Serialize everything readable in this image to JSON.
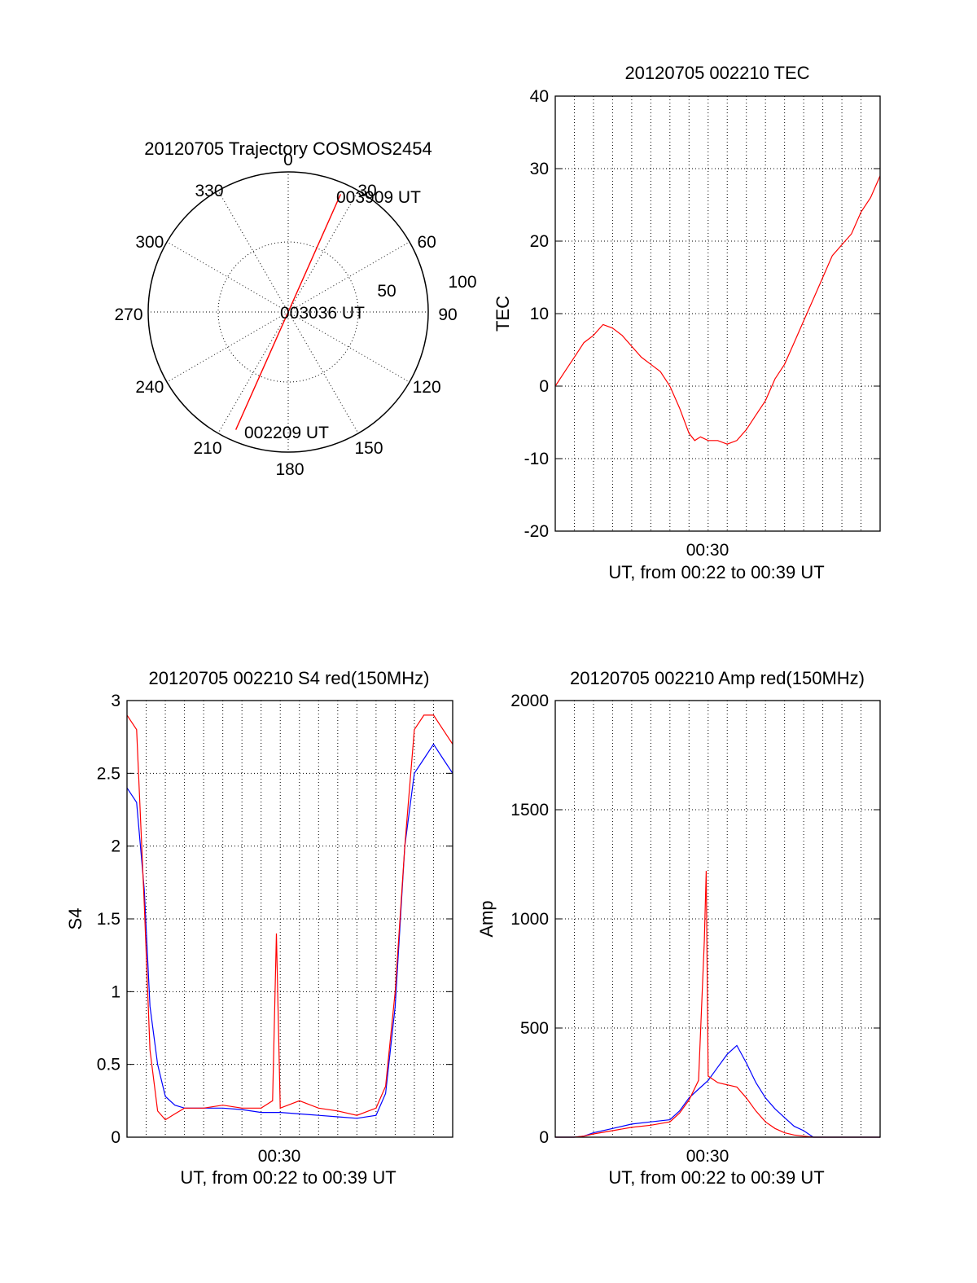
{
  "colors": {
    "red": "#ff0000",
    "blue": "#0000ff"
  },
  "chart_data": [
    {
      "id": "polar",
      "type": "scatter",
      "title": "20120705 Trajectory COSMOS2454",
      "azimuth_labels": [
        "0",
        "30",
        "60",
        "90",
        "120",
        "150",
        "180",
        "210",
        "240",
        "270",
        "300",
        "330"
      ],
      "radius_labels": [
        "50",
        "100"
      ],
      "track": {
        "start_time": "002209 UT",
        "mid_time": "003036 UT",
        "end_time": "003909 UT",
        "points": [
          [
            204,
            92
          ],
          [
            204,
            50
          ],
          [
            204,
            20
          ],
          [
            204,
            5
          ],
          [
            24,
            0
          ],
          [
            24,
            20
          ],
          [
            24,
            50
          ],
          [
            24,
            92
          ]
        ]
      }
    },
    {
      "id": "tec",
      "type": "line",
      "title": "20120705 002210 TEC",
      "ylabel": "TEC",
      "xlabel": "UT, from 00:22 to 00:39 UT",
      "xtick_label": "00:30",
      "ylim": [
        -20,
        40
      ],
      "yticks": [
        "-20",
        "-10",
        "0",
        "10",
        "20",
        "30",
        "40"
      ],
      "series": [
        {
          "color": "#ff0000",
          "x_minutes": [
            0,
            0.5,
            1,
            1.5,
            2,
            2.5,
            3,
            3.5,
            4,
            4.5,
            5,
            5.5,
            6,
            6.5,
            7,
            7.3,
            7.6,
            8,
            8.5,
            9,
            9.5,
            10,
            10.5,
            11,
            11.5,
            12,
            12.5,
            13,
            13.5,
            14,
            14.5,
            15,
            15.5,
            16,
            16.5,
            17
          ],
          "y": [
            0,
            2,
            4,
            6,
            7,
            8.5,
            8,
            7,
            5.5,
            4,
            3,
            2,
            0,
            -3,
            -6.5,
            -7.5,
            -7,
            -7.5,
            -7.5,
            -8,
            -7.5,
            -6,
            -4,
            -2,
            1,
            3,
            6,
            9,
            12,
            15,
            18,
            19.5,
            21,
            24,
            26,
            29
          ]
        }
      ]
    },
    {
      "id": "s4",
      "type": "line",
      "title": "20120705 002210 S4 red(150MHz)",
      "ylabel": "S4",
      "xlabel": "UT, from 00:22 to 00:39 UT",
      "xtick_label": "00:30",
      "ylim": [
        0,
        3
      ],
      "yticks": [
        "0",
        "0.5",
        "1",
        "1.5",
        "2",
        "2.5",
        "3"
      ],
      "series": [
        {
          "color": "#0000ff",
          "x_minutes": [
            0,
            0.5,
            0.9,
            1.2,
            1.6,
            2,
            2.5,
            3,
            4,
            5,
            6,
            7,
            8,
            9,
            10,
            11,
            12,
            13,
            13.5,
            14,
            14.5,
            15,
            15.5,
            16,
            16.5,
            17
          ],
          "y": [
            2.4,
            2.3,
            1.7,
            0.9,
            0.5,
            0.28,
            0.22,
            0.2,
            0.2,
            0.2,
            0.19,
            0.17,
            0.17,
            0.16,
            0.15,
            0.14,
            0.13,
            0.15,
            0.3,
            0.9,
            2.0,
            2.5,
            2.6,
            2.7,
            2.6,
            2.5
          ]
        },
        {
          "color": "#ff0000",
          "x_minutes": [
            0,
            0.5,
            0.9,
            1.2,
            1.6,
            2,
            2.5,
            3,
            4,
            5,
            6,
            7,
            7.6,
            7.8,
            8,
            9,
            10,
            11,
            12,
            13,
            13.5,
            14,
            14.5,
            15,
            15.5,
            16,
            16.5,
            17
          ],
          "y": [
            2.9,
            2.8,
            1.6,
            0.6,
            0.18,
            0.12,
            0.16,
            0.2,
            0.2,
            0.22,
            0.2,
            0.2,
            0.25,
            1.4,
            0.2,
            0.25,
            0.2,
            0.18,
            0.15,
            0.2,
            0.35,
            1.0,
            2.0,
            2.8,
            2.9,
            2.9,
            2.8,
            2.7
          ]
        }
      ]
    },
    {
      "id": "amp",
      "type": "line",
      "title": "20120705 002210 Amp red(150MHz)",
      "ylabel": "Amp",
      "xlabel": "UT, from 00:22 to 00:39 UT",
      "xtick_label": "00:30",
      "ylim": [
        0,
        2000
      ],
      "yticks": [
        "0",
        "500",
        "1000",
        "1500",
        "2000"
      ],
      "series": [
        {
          "color": "#0000ff",
          "x_minutes": [
            0,
            1,
            1.5,
            2,
            3,
            4,
            5,
            6,
            6.5,
            7,
            7.5,
            8,
            8.5,
            9,
            9.5,
            10,
            10.5,
            11,
            11.5,
            12,
            12.5,
            13,
            13.5,
            14,
            15,
            16,
            17
          ],
          "y": [
            0,
            0,
            5,
            20,
            40,
            60,
            70,
            80,
            120,
            180,
            220,
            260,
            320,
            380,
            420,
            340,
            250,
            180,
            130,
            90,
            50,
            30,
            0,
            0,
            0,
            0,
            0
          ]
        },
        {
          "color": "#ff0000",
          "x_minutes": [
            0,
            1,
            1.5,
            2,
            3,
            4,
            5,
            6,
            6.5,
            7,
            7.5,
            7.8,
            7.9,
            8,
            8.5,
            9,
            9.5,
            10,
            10.5,
            11,
            11.5,
            12,
            12.5,
            13,
            13.5,
            14,
            15,
            16,
            17
          ],
          "y": [
            0,
            0,
            5,
            15,
            30,
            45,
            55,
            70,
            110,
            170,
            260,
            900,
            1220,
            280,
            250,
            240,
            230,
            180,
            120,
            70,
            40,
            20,
            10,
            5,
            0,
            0,
            0,
            0,
            0
          ]
        }
      ]
    }
  ]
}
